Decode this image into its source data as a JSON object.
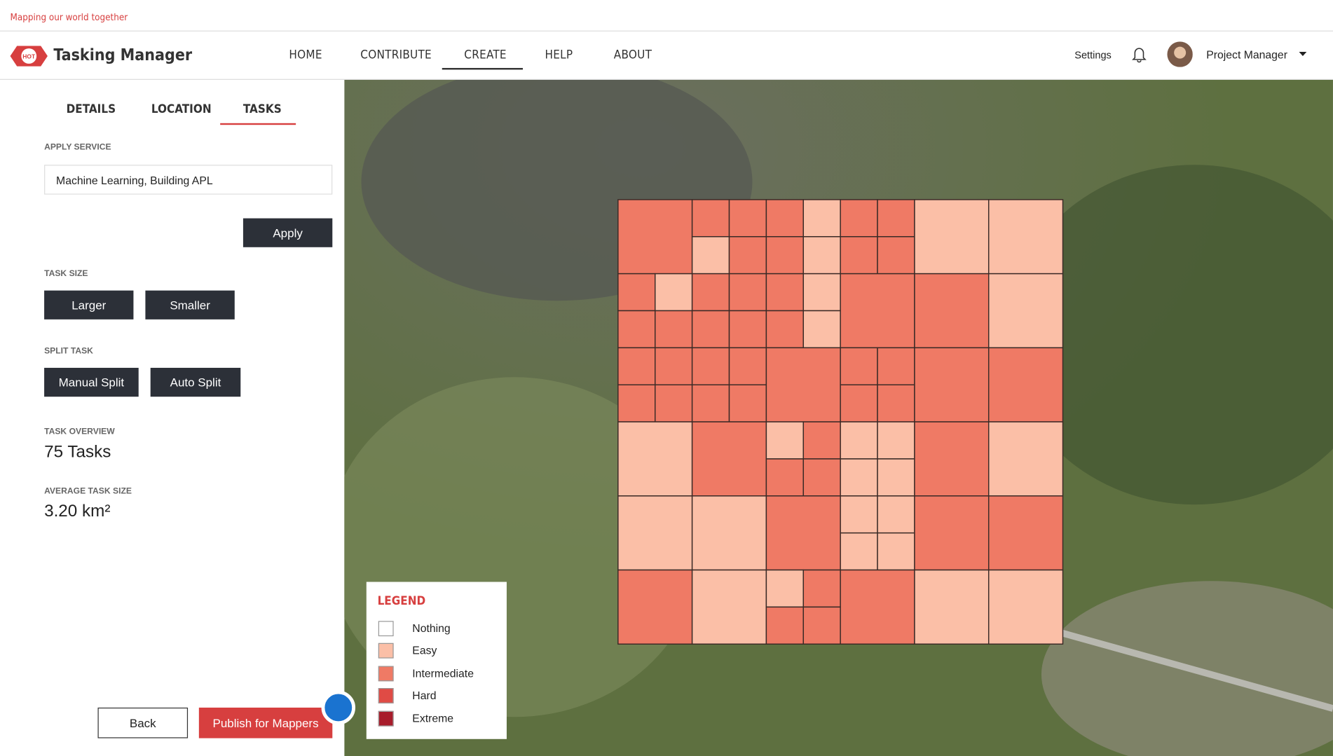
{
  "banner": "Mapping our world together",
  "logo": "HOT",
  "brand": "Tasking Manager",
  "nav": [
    "HOME",
    "CONTRIBUTE",
    "CREATE",
    "HELP",
    "ABOUT"
  ],
  "user": {
    "settings": "Settings",
    "name": "Project Manager"
  },
  "tabs": [
    "DETAILS",
    "LOCATION",
    "TASKS"
  ],
  "panel": {
    "apply_service_label": "APPLY SERVICE",
    "apply_service_value": "Machine Learning, Building APL",
    "apply": "Apply",
    "task_size_label": "TASK SIZE",
    "larger": "Larger",
    "smaller": "Smaller",
    "split_label": "SPLIT TASK",
    "manual_split": "Manual Split",
    "auto_split": "Auto Split",
    "overview_label": "TASK OVERVIEW",
    "overview_value": "75 Tasks",
    "avg_label": "AVERAGE TASK SIZE",
    "avg_value": "3.20 km²",
    "back": "Back",
    "publish": "Publish for Mappers"
  },
  "legend": {
    "title": "LEGEND",
    "items": [
      {
        "label": "Nothing",
        "color": "#ffffff"
      },
      {
        "label": "Easy",
        "color": "#fbbfa7"
      },
      {
        "label": "Intermediate",
        "color": "#ef7a65"
      },
      {
        "label": "Hard",
        "color": "#e04b45"
      },
      {
        "label": "Extreme",
        "color": "#a81c2b"
      }
    ]
  }
}
